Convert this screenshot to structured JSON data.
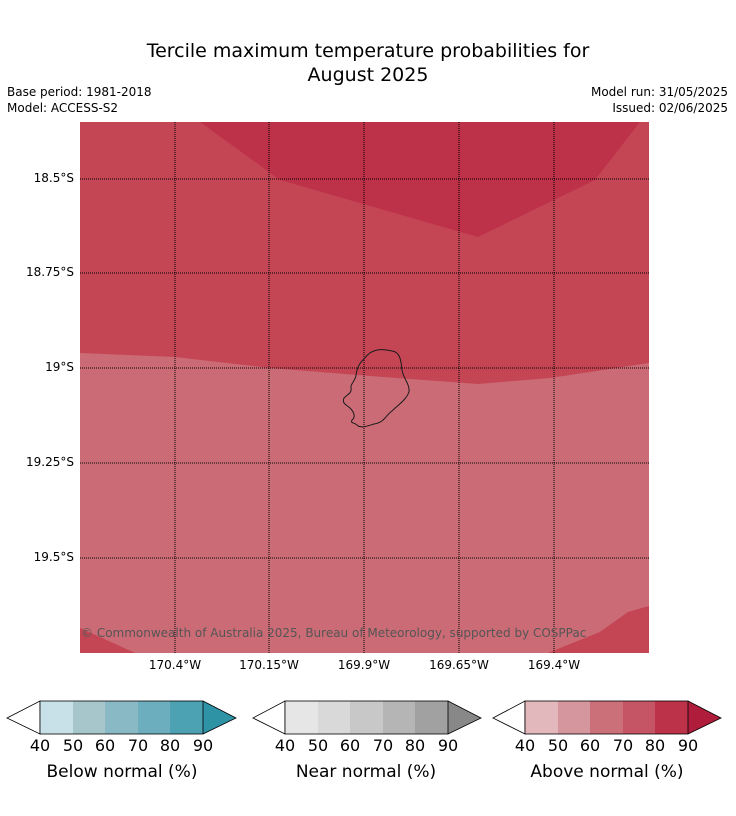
{
  "title": "Tercile maximum temperature probabilities for August 2025",
  "title_line1": "Tercile maximum temperature probabilities for",
  "title_line2": "August 2025",
  "meta": {
    "base_period": "Base period: 1981-2018",
    "model": "Model: ACCESS-S2",
    "model_run": "Model run: 31/05/2025",
    "issued": "Issued: 02/06/2025"
  },
  "map": {
    "copyright": "© Commonwealth of Australia 2025, Bureau of Meteorology, supported by COSPPac",
    "lat_labels": [
      "18.5°S",
      "18.75°S",
      "19°S",
      "19.25°S",
      "19.5°S"
    ],
    "lon_labels": [
      "170.4°W",
      "170.15°W",
      "169.9°W",
      "169.65°W",
      "169.4°W"
    ],
    "lat_range": [
      18.35,
      19.75
    ],
    "lon_range": [
      170.65,
      169.15
    ],
    "zone_colors": {
      "above_80_90": "#bd3249",
      "above_70_80": "#c44655",
      "above_60_70": "#cb6b75"
    }
  },
  "legends": [
    {
      "name": "Below normal (%)",
      "ticks": [
        "40",
        "50",
        "60",
        "70",
        "80",
        "90"
      ],
      "colors": [
        "#c8e1e8",
        "#a6c6cc",
        "#8ab9c6",
        "#6daebe",
        "#4ca2b3",
        "#2f93a6"
      ]
    },
    {
      "name": "Near normal (%)",
      "ticks": [
        "40",
        "50",
        "60",
        "70",
        "80",
        "90"
      ],
      "colors": [
        "#e6e6e6",
        "#d9d9d9",
        "#c8c8c8",
        "#b5b5b5",
        "#a1a1a1",
        "#888888"
      ]
    },
    {
      "name": "Above normal (%)",
      "ticks": [
        "40",
        "50",
        "60",
        "70",
        "80",
        "90"
      ],
      "colors": [
        "#e2b8bc",
        "#d6969d",
        "#cb6f79",
        "#c55564",
        "#bb3249",
        "#b01d3c"
      ]
    }
  ]
}
